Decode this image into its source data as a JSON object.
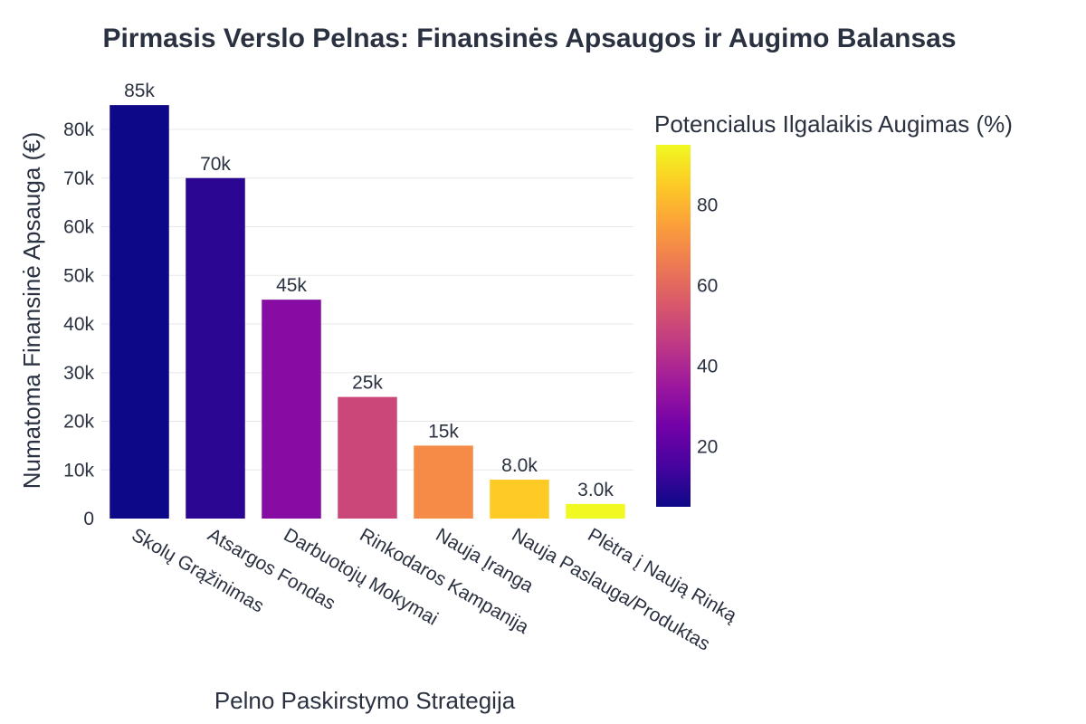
{
  "chart_data": {
    "type": "bar",
    "title": "Pirmasis Verslo Pelnas: Finansinės Apsaugos ir Augimo Balansas",
    "xlabel": "Pelno Paskirstymo Strategija",
    "ylabel": "Numatoma Finansinė Apsauga (€)",
    "ylim": [
      0,
      88000
    ],
    "yticks": [
      0,
      10000,
      20000,
      30000,
      40000,
      50000,
      60000,
      70000,
      80000
    ],
    "ytick_labels": [
      "0",
      "10k",
      "20k",
      "30k",
      "40k",
      "50k",
      "60k",
      "70k",
      "80k"
    ],
    "grid": true,
    "categories": [
      "Skolų Grąžinimas",
      "Atsargos Fondas",
      "Darbuotojų Mokymai",
      "Rinkodaros Kampanija",
      "Nauja Įranga",
      "Nauja Paslauga/Produktas",
      "Plėtra į Naują Rinką"
    ],
    "values": [
      85000,
      70000,
      45000,
      25000,
      15000,
      8000,
      3000
    ],
    "value_labels": [
      "85k",
      "70k",
      "45k",
      "25k",
      "15k",
      "8.0k",
      "3.0k"
    ],
    "color_values": [
      5,
      10,
      30,
      50,
      70,
      85,
      95
    ],
    "colorbar": {
      "title": "Potencialus Ilgalaikis Augimas (%)",
      "range": [
        5,
        95
      ],
      "ticks": [
        20,
        40,
        60,
        80
      ],
      "colorscale": "plasma"
    }
  }
}
